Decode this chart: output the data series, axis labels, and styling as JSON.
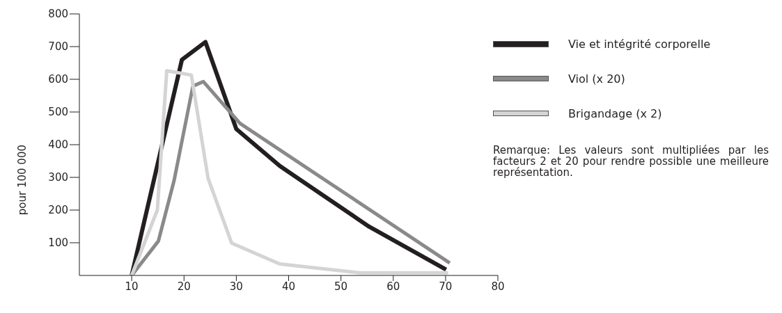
{
  "chart_data": {
    "type": "line",
    "ylabel": "pour 100 000",
    "xlim": [
      0,
      80
    ],
    "xticks": [
      10,
      20,
      30,
      40,
      50,
      60,
      70,
      80
    ],
    "ylim": [
      0,
      800
    ],
    "yticks": [
      100,
      200,
      300,
      400,
      500,
      600,
      700,
      800
    ],
    "grid": false,
    "legend": "top right",
    "marker": "none",
    "line_style": "solid",
    "annotations": [
      "Remarque: Les valeurs sont multipliées par les facteurs 2 et 20 pour rendre possible une meilleure représentation."
    ],
    "series": [
      {
        "name": "Vie et intégrité corporelle",
        "color": "#231f20",
        "x": [
          10,
          19.6,
          24.1,
          30,
          38.3,
          55.4,
          70.1
        ],
        "values": [
          0,
          660,
          714,
          448,
          335,
          149,
          18
        ]
      },
      {
        "name": "Viol (x 20)",
        "color": "#8a8a8a",
        "x": [
          10,
          15.1,
          18.1,
          21.7,
          23.7,
          30.7,
          70.8
        ],
        "values": [
          0,
          105,
          290,
          579,
          593,
          465,
          38
        ]
      },
      {
        "name": "Brigandage (x 2)",
        "color": "#d4d4d4",
        "x": [
          10,
          14.9,
          16.7,
          21.4,
          24.6,
          29.1,
          38.3,
          53.6,
          70.5
        ],
        "values": [
          0,
          200,
          626,
          613,
          297,
          99,
          35,
          8,
          8
        ]
      }
    ]
  }
}
